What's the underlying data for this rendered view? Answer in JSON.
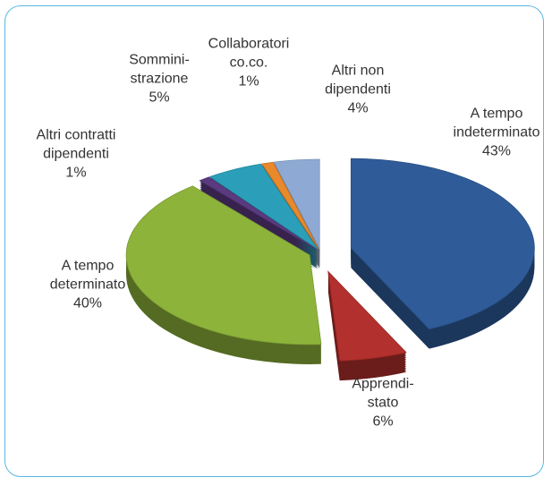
{
  "chart_data": {
    "type": "pie",
    "categories": [
      "A tempo\nindeterminato",
      "Apprendi-\nstato",
      "A tempo\ndeterminato",
      "Altri contratti\ndipendenti",
      "Sommini-\nstrazione",
      "Collaboratori\nco.co.",
      "Altri non\ndipendenti"
    ],
    "values": [
      43,
      6,
      40,
      1,
      5,
      1,
      4
    ],
    "value_labels": [
      "43%",
      "6%",
      "40%",
      "1%",
      "5%",
      "1%",
      "4%"
    ],
    "colors": [
      "#2f5c99",
      "#b2302d",
      "#8db33b",
      "#5b3a80",
      "#2b9fb9",
      "#e8892b",
      "#8fa9d5"
    ]
  }
}
